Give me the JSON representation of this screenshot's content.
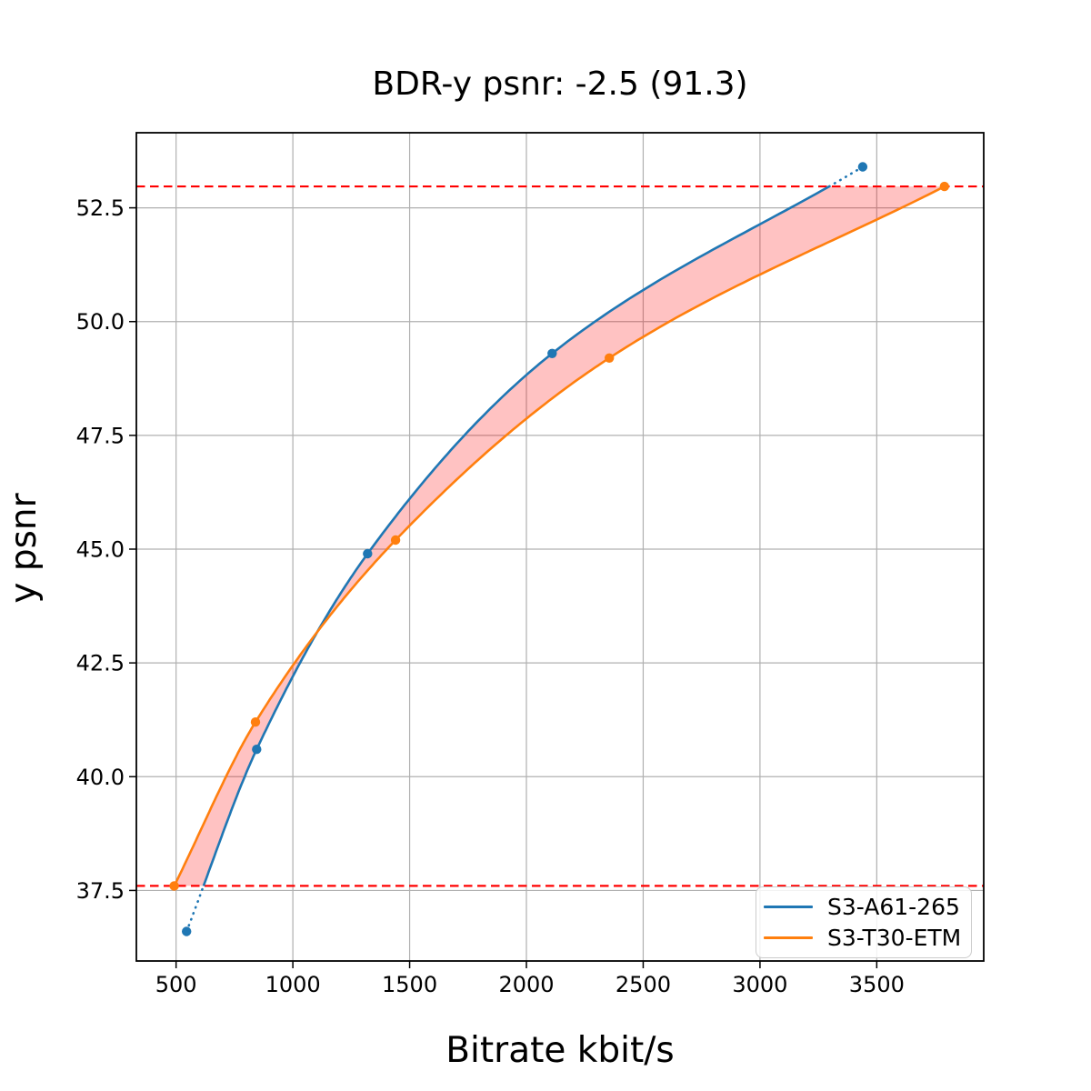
{
  "chart_data": {
    "type": "line",
    "title": "BDR-y psnr: -2.5 (91.3)",
    "xlabel": "Bitrate kbit/s",
    "ylabel": "y psnr",
    "xlim": [
      330,
      3958
    ],
    "ylim": [
      35.95,
      54.15
    ],
    "xticks": [
      500,
      1000,
      1500,
      2000,
      2500,
      3000,
      3500
    ],
    "yticks": [
      37.5,
      40.0,
      42.5,
      45.0,
      47.5,
      50.0,
      52.5
    ],
    "grid": true,
    "grid_color": "#b0b0b0",
    "series": [
      {
        "name": "S3-A61-265",
        "color": "#1f77b4",
        "interpolation": "pchip",
        "points": [
          [
            545,
            36.6
          ],
          [
            845,
            40.6
          ],
          [
            1320,
            44.9
          ],
          [
            2110,
            49.3
          ],
          [
            3440,
            53.4
          ]
        ]
      },
      {
        "name": "S3-T30-ETM",
        "color": "#ff7f0e",
        "interpolation": "pchip",
        "points": [
          [
            492,
            37.6
          ],
          [
            840,
            41.2
          ],
          [
            1440,
            45.2
          ],
          [
            2355,
            49.2
          ],
          [
            3790,
            52.97
          ]
        ]
      }
    ],
    "reference_lines": {
      "color": "#ff0000",
      "style": "dashed",
      "y_values": [
        37.6,
        52.97
      ],
      "meaning": "PSNR overlap interval used for BD-rate integration"
    },
    "shaded_region": {
      "color": "rgba(255,0,0,0.24)",
      "between": [
        "S3-A61-265",
        "S3-T30-ETM"
      ],
      "y_range": [
        37.6,
        52.97
      ]
    },
    "legend": {
      "position": "lower right",
      "entries": [
        "S3-A61-265",
        "S3-T30-ETM"
      ]
    }
  }
}
